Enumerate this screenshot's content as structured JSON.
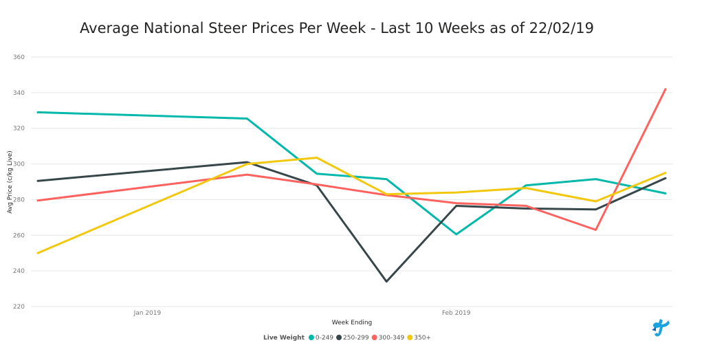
{
  "chart_data": {
    "type": "line",
    "title": "Average National Steer Prices Per Week - Last 10 Weeks as of 22/02/19",
    "xlabel": "Week Ending",
    "ylabel": "Avg Price (c/kg Live)",
    "ylim": [
      220,
      360
    ],
    "yticks": [
      220,
      240,
      260,
      280,
      300,
      320,
      340,
      360
    ],
    "xticks": [
      {
        "label": "Jan 2019",
        "date": "2019-01-01"
      },
      {
        "label": "Feb 2019",
        "date": "2019-02-01"
      }
    ],
    "x": [
      "2018-12-21",
      "2019-01-11",
      "2019-01-18",
      "2019-01-25",
      "2019-02-01",
      "2019-02-08",
      "2019-02-15",
      "2019-02-22"
    ],
    "grid": true,
    "legend": {
      "title": "Live Weight",
      "placement": "bottom"
    },
    "series": [
      {
        "name": "0-249",
        "color": "#01B8AA",
        "values": [
          329,
          325.5,
          294.5,
          291.5,
          260.5,
          288,
          291.5,
          283.5
        ]
      },
      {
        "name": "250-299",
        "color": "#374649",
        "values": [
          290.5,
          301,
          288,
          234,
          276.5,
          275,
          274.5,
          292
        ]
      },
      {
        "name": "300-349",
        "color": "#FD625E",
        "values": [
          279.5,
          294,
          288.5,
          282.5,
          278,
          276.5,
          263,
          342
        ]
      },
      {
        "name": "350+",
        "color": "#F2C80F",
        "values": [
          250,
          300,
          303.5,
          283,
          284,
          286.5,
          279,
          295
        ]
      }
    ]
  }
}
